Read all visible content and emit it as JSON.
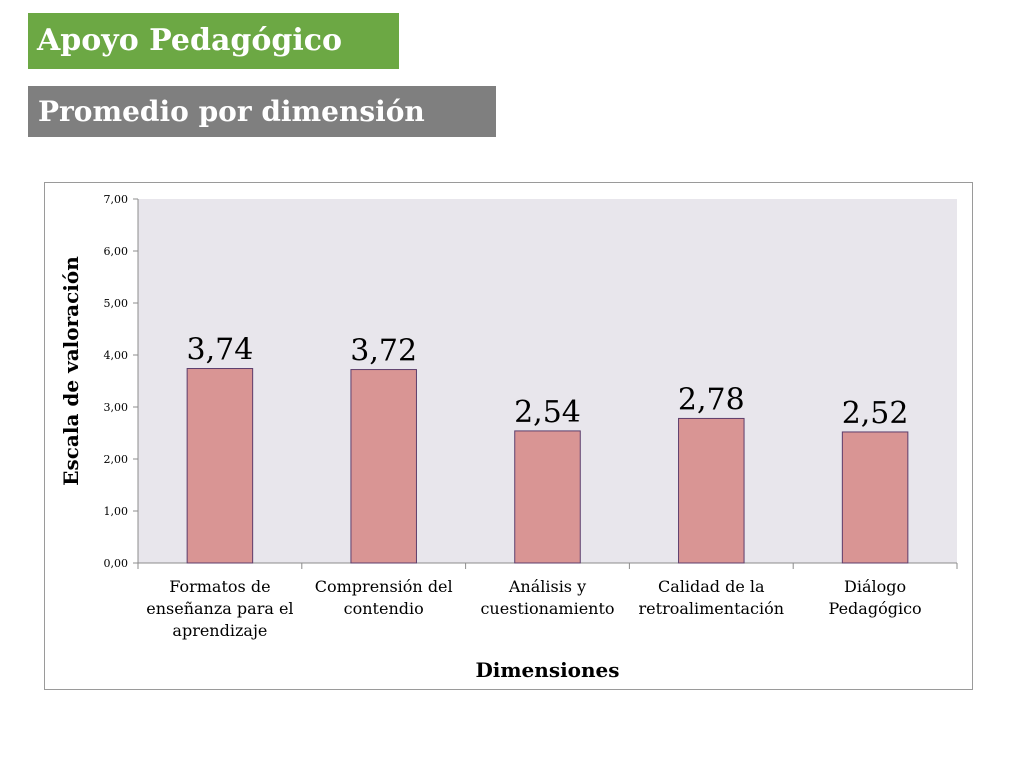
{
  "header": {
    "title": "Apoyo Pedagógico",
    "subtitle": "Promedio por dimensión"
  },
  "colors": {
    "title_bg": "#6ca844",
    "subtitle_bg": "#7f7f7f",
    "plot_bg": "#e8e6ec",
    "bar_fill": "#d99594",
    "bar_stroke": "#5c3d6b"
  },
  "chart_data": {
    "type": "bar",
    "categories": [
      [
        "Formatos de",
        "enseñanza para el",
        "aprendizaje"
      ],
      [
        "Comprensión del",
        "contendio"
      ],
      [
        "Análisis y",
        "cuestionamiento"
      ],
      [
        "Calidad de la",
        "retroalimentación"
      ],
      [
        "Diálogo",
        "Pedagógico"
      ]
    ],
    "values": [
      3.74,
      3.72,
      2.54,
      2.78,
      2.52
    ],
    "data_labels": [
      "3,74",
      "3,72",
      "2,54",
      "2,78",
      "2,52"
    ],
    "xlabel": "Dimensiones",
    "ylabel": "Escala de valoración",
    "ylim": [
      0,
      7
    ],
    "yticks": [
      "0,00",
      "1,00",
      "2,00",
      "3,00",
      "4,00",
      "5,00",
      "6,00",
      "7,00"
    ],
    "grid": false,
    "legend": "none"
  }
}
